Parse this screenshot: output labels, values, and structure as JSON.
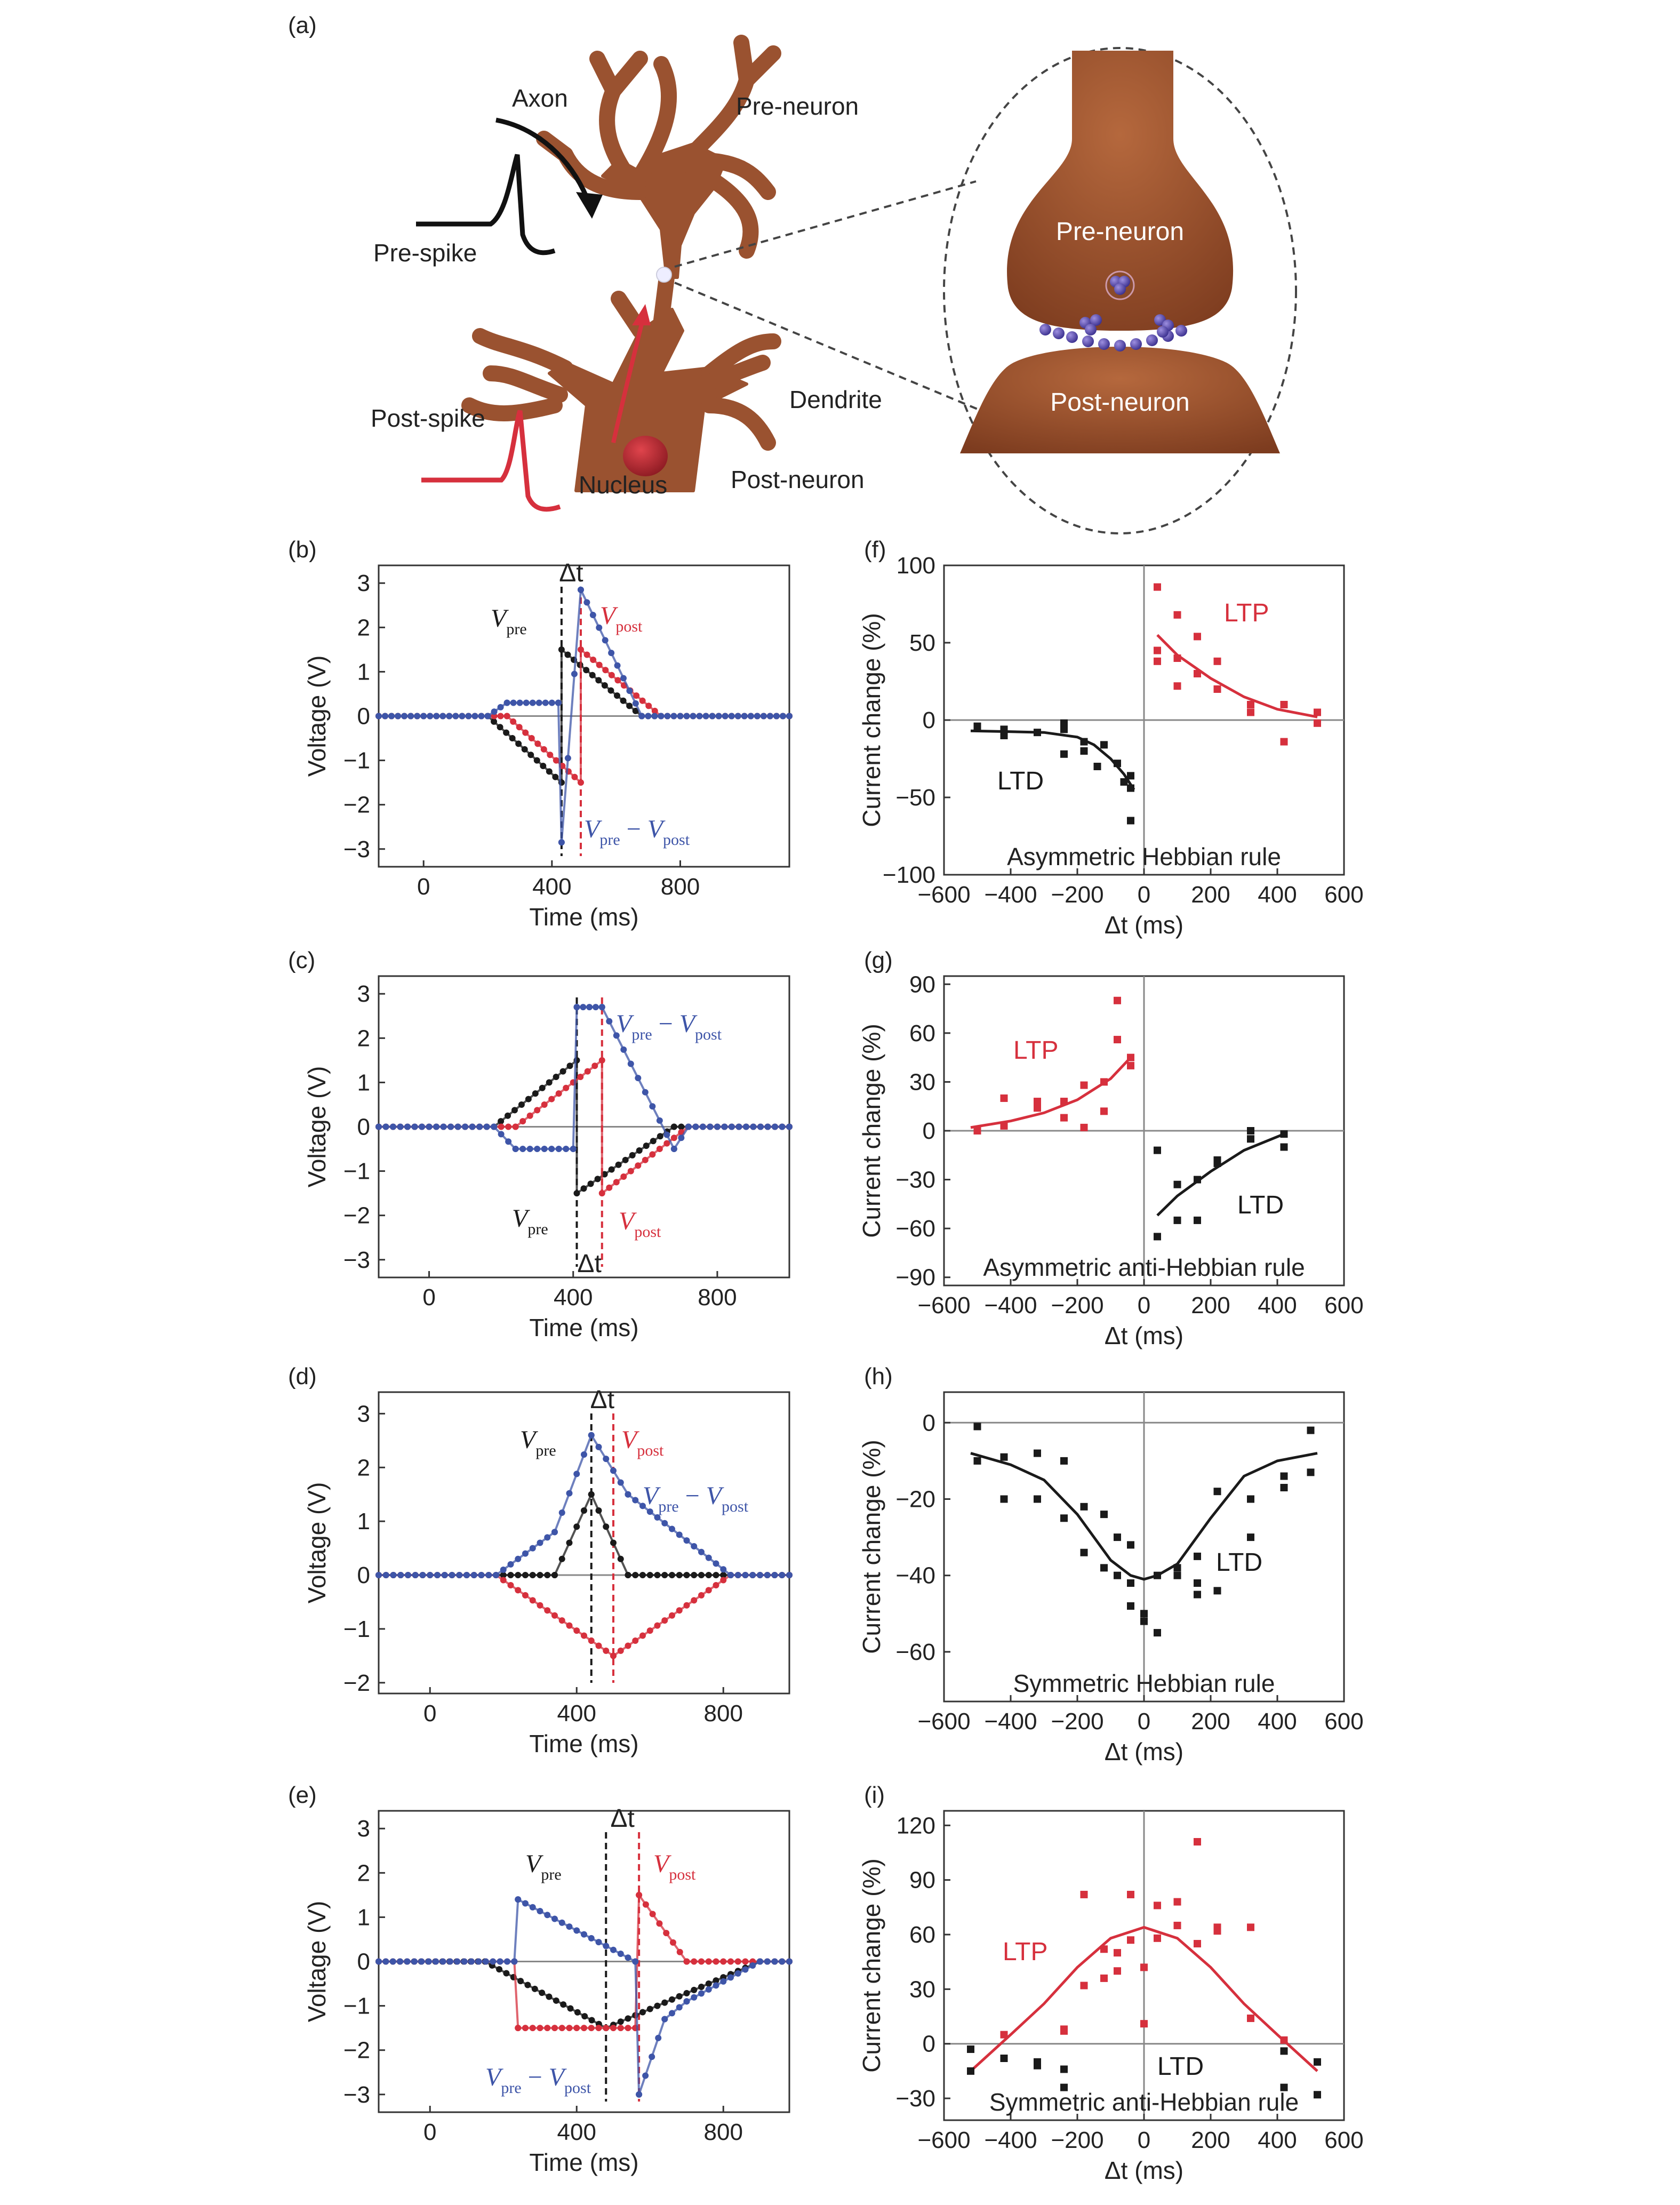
{
  "panel_a": {
    "label": "(a)",
    "axon": "Axon",
    "pre_neuron": "Pre-neuron",
    "pre_spike": "Pre-spike",
    "post_spike": "Post-spike",
    "dendrite": "Dendrite",
    "nucleus": "Nucleus",
    "post_neuron": "Post-neuron",
    "zoom_pre": "Pre-neuron",
    "zoom_post": "Post-neuron"
  },
  "colors": {
    "black": "#1a1a1a",
    "red": "#d6303d",
    "blue": "#3e55a8",
    "brown": "#9a5230",
    "gray": "#8a8a8a"
  },
  "chart_data": [
    {
      "id": "b",
      "label": "(b)",
      "type": "line",
      "xlabel": "Time (ms)",
      "ylabel": "Voltage (V)",
      "xlim": [
        -140,
        1140
      ],
      "ylim": [
        -3.4,
        3.4
      ],
      "xticks": [
        0,
        400,
        800
      ],
      "yticks": [
        3,
        2,
        1,
        0,
        -1,
        -2,
        -3
      ],
      "dt_label": "Δt",
      "vlines": [
        {
          "x": 430,
          "color": "black"
        },
        {
          "x": 490,
          "color": "red"
        }
      ],
      "series": [
        {
          "name": "V_pre",
          "color": "black",
          "x": [
            -140,
            200,
            430,
            430,
            680,
            1140
          ],
          "y": [
            0,
            0,
            -1.5,
            1.5,
            0,
            0
          ]
        },
        {
          "name": "V_post",
          "color": "red",
          "x": [
            -140,
            260,
            490,
            490,
            740,
            1140
          ],
          "y": [
            0,
            0,
            -1.5,
            1.5,
            0,
            0
          ]
        },
        {
          "name": "V_pre - V_post",
          "color": "blue",
          "x": [
            -140,
            200,
            260,
            420,
            430,
            490,
            680,
            740,
            1140
          ],
          "y": [
            0,
            0,
            0.3,
            0.3,
            -2.85,
            2.85,
            0,
            0,
            0
          ]
        }
      ],
      "labels": {
        "pre": "V",
        "pre_sub": "pre",
        "post": "V",
        "post_sub": "post",
        "diff": "V",
        "diff_sub1": "pre",
        "minus": " − ",
        "diff_v2": "V",
        "diff_sub2": "post"
      }
    },
    {
      "id": "c",
      "label": "(c)",
      "type": "line",
      "xlabel": "Time (ms)",
      "ylabel": "Voltage (V)",
      "xlim": [
        -140,
        1000
      ],
      "ylim": [
        -3.4,
        3.4
      ],
      "xticks": [
        0,
        400,
        800
      ],
      "yticks": [
        3,
        2,
        1,
        0,
        -1,
        -2,
        -3
      ],
      "dt_label": "Δt",
      "vlines": [
        {
          "x": 410,
          "color": "black"
        },
        {
          "x": 480,
          "color": "red"
        }
      ],
      "series": [
        {
          "name": "V_pre",
          "color": "black",
          "x": [
            -140,
            180,
            410,
            410,
            680,
            1000
          ],
          "y": [
            0,
            0,
            1.5,
            -1.5,
            0,
            0
          ]
        },
        {
          "name": "V_post",
          "color": "red",
          "x": [
            -140,
            240,
            480,
            480,
            720,
            1000
          ],
          "y": [
            0,
            0,
            1.5,
            -1.5,
            0,
            0
          ]
        },
        {
          "name": "V_pre - V_post",
          "color": "blue",
          "x": [
            -140,
            180,
            240,
            400,
            410,
            480,
            680,
            720,
            1000
          ],
          "y": [
            0,
            0,
            -0.5,
            -0.5,
            2.7,
            2.7,
            -0.5,
            0,
            0
          ]
        }
      ]
    },
    {
      "id": "d",
      "label": "(d)",
      "type": "line",
      "xlabel": "Time (ms)",
      "ylabel": "Voltage (V)",
      "xlim": [
        -140,
        980
      ],
      "ylim": [
        -2.2,
        3.4
      ],
      "xticks": [
        0,
        400,
        800
      ],
      "yticks": [
        3,
        2,
        1,
        0,
        -1,
        -2
      ],
      "dt_label": "Δt",
      "vlines": [
        {
          "x": 440,
          "color": "black"
        },
        {
          "x": 500,
          "color": "red"
        }
      ],
      "series": [
        {
          "name": "V_pre",
          "color": "black",
          "x": [
            -140,
            340,
            440,
            540,
            980
          ],
          "y": [
            0,
            0,
            1.5,
            0,
            0
          ]
        },
        {
          "name": "V_post",
          "color": "red",
          "x": [
            -140,
            180,
            500,
            820,
            980
          ],
          "y": [
            0,
            0,
            -1.5,
            0,
            0
          ]
        },
        {
          "name": "V_pre - V_post",
          "color": "blue",
          "x": [
            -140,
            180,
            340,
            440,
            540,
            820,
            980
          ],
          "y": [
            0,
            0,
            0.8,
            2.6,
            1.5,
            0,
            0
          ]
        }
      ]
    },
    {
      "id": "e",
      "label": "(e)",
      "type": "line",
      "xlabel": "Time (ms)",
      "ylabel": "Voltage (V)",
      "xlim": [
        -140,
        980
      ],
      "ylim": [
        -3.4,
        3.4
      ],
      "xticks": [
        0,
        400,
        800
      ],
      "yticks": [
        3,
        2,
        1,
        0,
        -1,
        -2,
        -3
      ],
      "dt_label": "Δt",
      "vlines": [
        {
          "x": 480,
          "color": "black"
        },
        {
          "x": 570,
          "color": "red"
        }
      ],
      "series": [
        {
          "name": "V_pre",
          "color": "black",
          "x": [
            -140,
            150,
            480,
            900,
            980
          ],
          "y": [
            0,
            0,
            -1.5,
            0,
            0
          ]
        },
        {
          "name": "V_post",
          "color": "red",
          "x": [
            -140,
            230,
            240,
            560,
            570,
            700,
            980
          ],
          "y": [
            0,
            0,
            -1.5,
            -1.5,
            1.5,
            0,
            0
          ]
        },
        {
          "name": "V_pre - V_post",
          "color": "blue",
          "x": [
            -140,
            230,
            240,
            560,
            570,
            640,
            700,
            900,
            980
          ],
          "y": [
            0,
            0,
            1.4,
            0,
            -3.0,
            -1.3,
            -0.9,
            0,
            0
          ]
        }
      ]
    },
    {
      "id": "f",
      "label": "(f)",
      "type": "scatter",
      "xlabel": "Δt (ms)",
      "ylabel": "Current change (%)",
      "xlim": [
        -600,
        600
      ],
      "ylim": [
        -100,
        100
      ],
      "xticks": [
        -600,
        -400,
        -200,
        0,
        200,
        400,
        600
      ],
      "yticks": [
        100,
        50,
        0,
        -50,
        -100
      ],
      "caption": "Asymmetric Hebbian rule",
      "series": [
        {
          "name": "LTD",
          "color": "black",
          "x": [
            -500,
            -420,
            -420,
            -320,
            -240,
            -240,
            -240,
            -180,
            -180,
            -140,
            -120,
            -80,
            -60,
            -40,
            -40,
            -40
          ],
          "y": [
            -4,
            -6,
            -10,
            -8,
            -2,
            -6,
            -22,
            -14,
            -20,
            -30,
            -16,
            -28,
            -40,
            -36,
            -44,
            -65
          ],
          "fit": {
            "x": [
              -520,
              -400,
              -300,
              -200,
              -150,
              -100,
              -60,
              -30
            ],
            "y": [
              -7,
              -7.5,
              -8,
              -11,
              -16,
              -25,
              -35,
              -45
            ]
          }
        },
        {
          "name": "LTP",
          "color": "red",
          "x": [
            40,
            40,
            40,
            100,
            100,
            100,
            160,
            160,
            220,
            220,
            320,
            320,
            420,
            420,
            520,
            520
          ],
          "y": [
            86,
            45,
            38,
            68,
            40,
            22,
            54,
            30,
            38,
            20,
            10,
            5,
            10,
            -14,
            5,
            -2
          ],
          "fit": {
            "x": [
              40,
              100,
              200,
              300,
              400,
              520
            ],
            "y": [
              55,
              42,
              27,
              15,
              7,
              2
            ]
          }
        }
      ]
    },
    {
      "id": "g",
      "label": "(g)",
      "type": "scatter",
      "xlabel": "Δt (ms)",
      "ylabel": "Current change (%)",
      "xlim": [
        -600,
        600
      ],
      "ylim": [
        -95,
        95
      ],
      "xticks": [
        -600,
        -400,
        -200,
        0,
        200,
        400,
        600
      ],
      "yticks": [
        90,
        60,
        30,
        0,
        -30,
        -60,
        -90
      ],
      "caption": "Asymmetric anti-Hebbian rule",
      "series": [
        {
          "name": "LTP",
          "color": "red",
          "x": [
            -500,
            -420,
            -420,
            -320,
            -320,
            -240,
            -240,
            -180,
            -180,
            -120,
            -120,
            -80,
            -80,
            -40,
            -40
          ],
          "y": [
            0,
            3,
            20,
            14,
            18,
            8,
            18,
            2,
            28,
            12,
            30,
            56,
            80,
            40,
            45
          ],
          "fit": {
            "x": [
              -520,
              -400,
              -300,
              -200,
              -100,
              -40
            ],
            "y": [
              2,
              6,
              11,
              19,
              32,
              45
            ]
          }
        },
        {
          "name": "LTD",
          "color": "black",
          "x": [
            40,
            40,
            100,
            100,
            160,
            160,
            220,
            220,
            320,
            320,
            420,
            420
          ],
          "y": [
            -12,
            -65,
            -33,
            -55,
            -30,
            -55,
            -20,
            -18,
            0,
            -5,
            -2,
            -10
          ],
          "fit": {
            "x": [
              40,
              100,
              200,
              300,
              420
            ],
            "y": [
              -52,
              -40,
              -25,
              -12,
              -2
            ]
          }
        }
      ]
    },
    {
      "id": "h",
      "label": "(h)",
      "type": "scatter",
      "xlabel": "Δt (ms)",
      "ylabel": "Current change (%)",
      "xlim": [
        -600,
        600
      ],
      "ylim": [
        -73,
        8
      ],
      "xticks": [
        -600,
        -400,
        -200,
        0,
        200,
        400,
        600
      ],
      "yticks": [
        0,
        -20,
        -40,
        -60
      ],
      "caption": "Symmetric Hebbian rule",
      "series": [
        {
          "name": "LTD",
          "color": "black",
          "x": [
            -500,
            -500,
            -420,
            -420,
            -320,
            -320,
            -240,
            -240,
            -180,
            -180,
            -120,
            -120,
            -80,
            -80,
            -40,
            -40,
            -40,
            0,
            0,
            40,
            40,
            100,
            100,
            160,
            160,
            160,
            220,
            220,
            320,
            320,
            420,
            420,
            500,
            500
          ],
          "y": [
            -1,
            -10,
            -9,
            -20,
            -8,
            -20,
            -10,
            -25,
            -22,
            -34,
            -24,
            -38,
            -30,
            -40,
            -48,
            -42,
            -32,
            -50,
            -52,
            -40,
            -55,
            -38,
            -40,
            -35,
            -42,
            -45,
            -18,
            -44,
            -20,
            -30,
            -14,
            -17,
            -2,
            -13
          ],
          "fit": {
            "x": [
              -520,
              -400,
              -300,
              -200,
              -100,
              -40,
              0,
              40,
              100,
              200,
              300,
              400,
              520
            ],
            "y": [
              -8,
              -11,
              -15,
              -24,
              -36,
              -40,
              -41,
              -40,
              -37,
              -25,
              -14,
              -10,
              -8
            ]
          }
        }
      ]
    },
    {
      "id": "i",
      "label": "(i)",
      "type": "scatter",
      "xlabel": "Δt (ms)",
      "ylabel": "Current change (%)",
      "xlim": [
        -600,
        600
      ],
      "ylim": [
        -42,
        128
      ],
      "xticks": [
        -600,
        -400,
        -200,
        0,
        200,
        400,
        600
      ],
      "yticks": [
        120,
        90,
        60,
        30,
        0,
        -30
      ],
      "caption": "Symmetric anti-Hebbian rule",
      "series": [
        {
          "name": "LTP",
          "color": "red",
          "x": [
            -420,
            -240,
            -240,
            -180,
            -180,
            -120,
            -120,
            -80,
            -80,
            -40,
            -40,
            0,
            0,
            40,
            40,
            100,
            100,
            160,
            160,
            220,
            220,
            320,
            320,
            420
          ],
          "y": [
            5,
            7,
            8,
            32,
            82,
            36,
            52,
            50,
            40,
            82,
            57,
            42,
            11,
            58,
            76,
            78,
            65,
            111,
            55,
            64,
            62,
            64,
            14,
            2
          ],
          "fit": {
            "x": [
              -520,
              -400,
              -300,
              -200,
              -100,
              0,
              100,
              200,
              300,
              400,
              520
            ],
            "y": [
              -15,
              5,
              22,
              42,
              58,
              64,
              58,
              42,
              22,
              5,
              -15
            ]
          }
        },
        {
          "name": "LTD",
          "color": "black",
          "x": [
            -520,
            -520,
            -420,
            -320,
            -320,
            -240,
            -240,
            420,
            420,
            520,
            520
          ],
          "y": [
            -3,
            -15,
            -8,
            -10,
            -12,
            -14,
            -24,
            -4,
            -24,
            -10,
            -28
          ],
          "fit": null
        }
      ],
      "ltp_label": "LTP",
      "ltd_label": "LTD"
    }
  ]
}
